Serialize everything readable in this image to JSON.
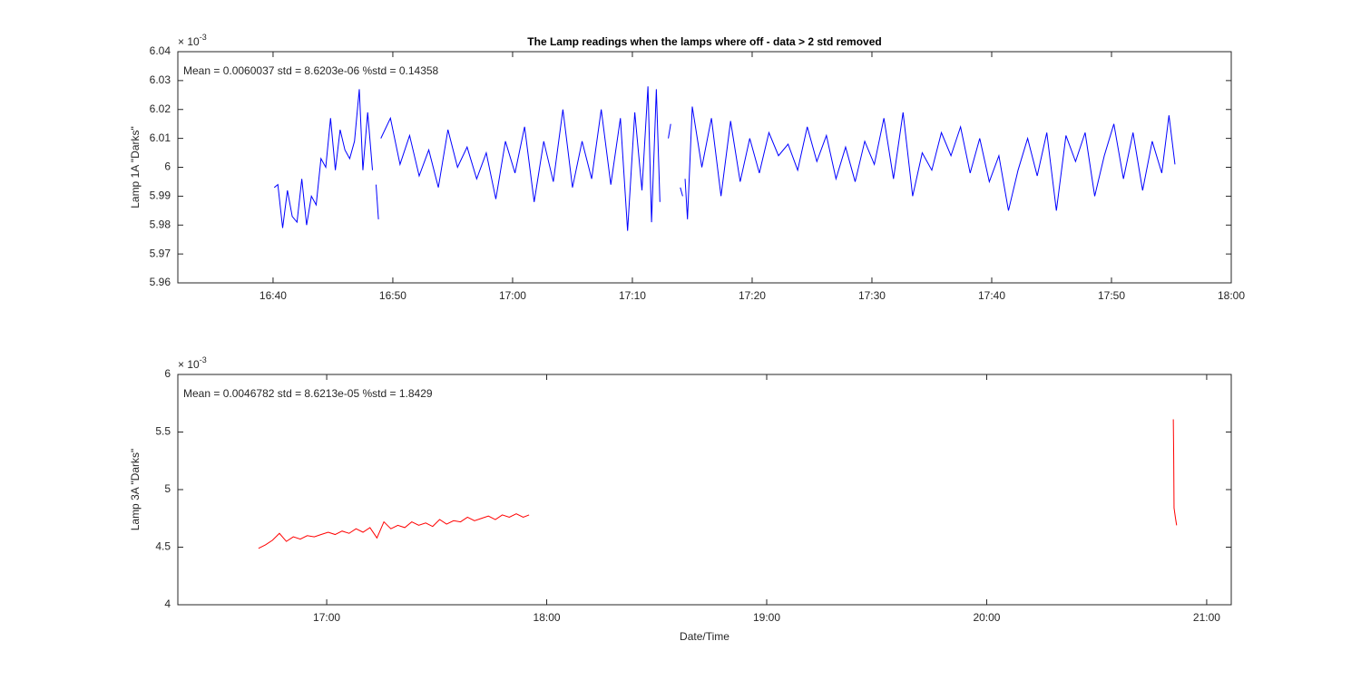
{
  "chart_data": [
    {
      "type": "line",
      "title": "The Lamp readings when the lamps where off - data > 2 std removed",
      "ylabel": "Lamp 1A \"Darks\"",
      "annotation": "Mean = 0.0060037  std = 8.6203e-06  %std = 0.14358",
      "y_multiplier": {
        "base": "× 10",
        "exponent": "-3"
      },
      "color": "#0000ff",
      "xlim": [
        992.05,
        1080
      ],
      "ylim": [
        5.96,
        6.04
      ],
      "xticks": [
        {
          "value": 1000,
          "label": "16:40"
        },
        {
          "value": 1010,
          "label": "16:50"
        },
        {
          "value": 1020,
          "label": "17:00"
        },
        {
          "value": 1030,
          "label": "17:10"
        },
        {
          "value": 1040,
          "label": "17:20"
        },
        {
          "value": 1050,
          "label": "17:30"
        },
        {
          "value": 1060,
          "label": "17:40"
        },
        {
          "value": 1070,
          "label": "17:50"
        },
        {
          "value": 1080,
          "label": "18:00"
        }
      ],
      "yticks": [
        5.96,
        5.97,
        5.98,
        5.99,
        6,
        6.01,
        6.02,
        6.03,
        6.04
      ],
      "x": [
        1000.1,
        1000.4,
        1000.8,
        1001.2,
        1001.6,
        1002.0,
        1002.4,
        1002.8,
        1003.2,
        1003.6,
        1004.0,
        1004.4,
        1004.8,
        1005.2,
        1005.6,
        1006.0,
        1006.4,
        1006.8,
        1007.2,
        1007.5,
        1007.9,
        1008.3,
        1008.45,
        1008.6,
        1008.8,
        1008.9,
        1009.0,
        1009.8,
        1010.6,
        1011.4,
        1012.2,
        1013.0,
        1013.8,
        1014.6,
        1015.4,
        1016.2,
        1017.0,
        1017.8,
        1018.6,
        1019.4,
        1020.2,
        1021.0,
        1021.8,
        1022.6,
        1023.4,
        1024.2,
        1025.0,
        1025.8,
        1026.6,
        1027.4,
        1028.2,
        1029.0,
        1029.6,
        1030.2,
        1030.8,
        1031.3,
        1031.6,
        1032.0,
        1032.3,
        1032.6,
        1033.0,
        1033.2,
        1033.6,
        1034.0,
        1034.2,
        1034.3,
        1034.4,
        1034.6,
        1035.0,
        1035.8,
        1036.6,
        1037.4,
        1038.2,
        1039.0,
        1039.8,
        1040.6,
        1041.4,
        1042.2,
        1043.0,
        1043.8,
        1044.6,
        1045.4,
        1046.2,
        1047.0,
        1047.8,
        1048.6,
        1049.4,
        1050.2,
        1051.0,
        1051.8,
        1052.6,
        1053.4,
        1054.2,
        1055.0,
        1055.8,
        1056.6,
        1057.4,
        1058.2,
        1059.0,
        1059.8,
        1060.6,
        1061.4,
        1062.2,
        1063.0,
        1063.8,
        1064.6,
        1065.4,
        1066.2,
        1067.0,
        1067.8,
        1068.6,
        1069.4,
        1070.2,
        1071.0,
        1071.8,
        1072.6,
        1073.4,
        1074.2,
        1074.8,
        1075.3
      ],
      "values": [
        5.993,
        5.994,
        5.979,
        5.992,
        5.983,
        5.981,
        5.996,
        5.98,
        5.99,
        5.987,
        6.003,
        6.0,
        6.017,
        5.999,
        6.013,
        6.006,
        6.003,
        6.009,
        6.027,
        5.999,
        6.019,
        5.999,
        null,
        5.994,
        5.982,
        null,
        6.01,
        6.017,
        6.001,
        6.011,
        5.997,
        6.006,
        5.993,
        6.013,
        6.0,
        6.007,
        5.996,
        6.005,
        5.989,
        6.009,
        5.998,
        6.014,
        5.988,
        6.009,
        5.995,
        6.02,
        5.993,
        6.009,
        5.996,
        6.02,
        5.994,
        6.017,
        5.978,
        6.019,
        5.992,
        6.028,
        5.981,
        6.027,
        5.988,
        null,
        6.01,
        6.015,
        null,
        5.993,
        5.99,
        null,
        5.996,
        5.982,
        6.021,
        6.0,
        6.017,
        5.99,
        6.016,
        5.995,
        6.01,
        5.998,
        6.012,
        6.004,
        6.008,
        5.999,
        6.014,
        6.002,
        6.011,
        5.996,
        6.007,
        5.995,
        6.009,
        6.001,
        6.017,
        5.996,
        6.019,
        5.99,
        6.005,
        5.999,
        6.012,
        6.004,
        6.014,
        5.998,
        6.01,
        5.995,
        6.004,
        5.985,
        5.999,
        6.01,
        5.997,
        6.012,
        5.985,
        6.011,
        6.002,
        6.012,
        5.99,
        6.004,
        6.015,
        5.996,
        6.012,
        5.992,
        6.009,
        5.998,
        6.018,
        6.001
      ]
    },
    {
      "type": "line",
      "ylabel": "Lamp 3A \"Darks\"",
      "xlabel": "Date/Time",
      "annotation": "Mean = 0.0046782  std = 8.6213e-05  %std = 1.8429",
      "y_multiplier": {
        "base": "× 10",
        "exponent": "-3"
      },
      "color": "#ff0000",
      "xlim": [
        979.4,
        1266.7
      ],
      "ylim": [
        4,
        6
      ],
      "xticks": [
        {
          "value": 1020,
          "label": "17:00"
        },
        {
          "value": 1080,
          "label": "18:00"
        },
        {
          "value": 1140,
          "label": "19:00"
        },
        {
          "value": 1200,
          "label": "20:00"
        },
        {
          "value": 1260,
          "label": "21:00"
        }
      ],
      "yticks": [
        4,
        4.5,
        5,
        5.5,
        6
      ],
      "x": [
        1001.4,
        1003.3,
        1005.2,
        1007.1,
        1009.0,
        1010.9,
        1012.8,
        1014.7,
        1016.6,
        1018.5,
        1020.4,
        1022.3,
        1024.2,
        1026.1,
        1028.0,
        1029.9,
        1031.8,
        1033.7,
        1035.6,
        1037.5,
        1039.4,
        1041.3,
        1043.2,
        1045.1,
        1047.0,
        1048.9,
        1050.8,
        1052.7,
        1054.6,
        1056.5,
        1058.4,
        1060.3,
        1062.2,
        1064.1,
        1066.0,
        1067.9,
        1069.8,
        1071.7,
        1073.6,
        1075.2,
        1160,
        1250.9,
        1251.0,
        1251.1,
        1251.5,
        1251.8
      ],
      "values": [
        4.49,
        4.52,
        4.56,
        4.62,
        4.55,
        4.59,
        4.57,
        4.6,
        4.59,
        4.61,
        4.63,
        4.61,
        4.64,
        4.62,
        4.66,
        4.63,
        4.67,
        4.58,
        4.72,
        4.66,
        4.69,
        4.67,
        4.72,
        4.69,
        4.71,
        4.68,
        4.74,
        4.7,
        4.73,
        4.72,
        4.76,
        4.73,
        4.75,
        4.77,
        4.74,
        4.78,
        4.76,
        4.79,
        4.76,
        4.78,
        null,
        5.61,
        5.3,
        4.84,
        4.75,
        4.69
      ]
    }
  ]
}
